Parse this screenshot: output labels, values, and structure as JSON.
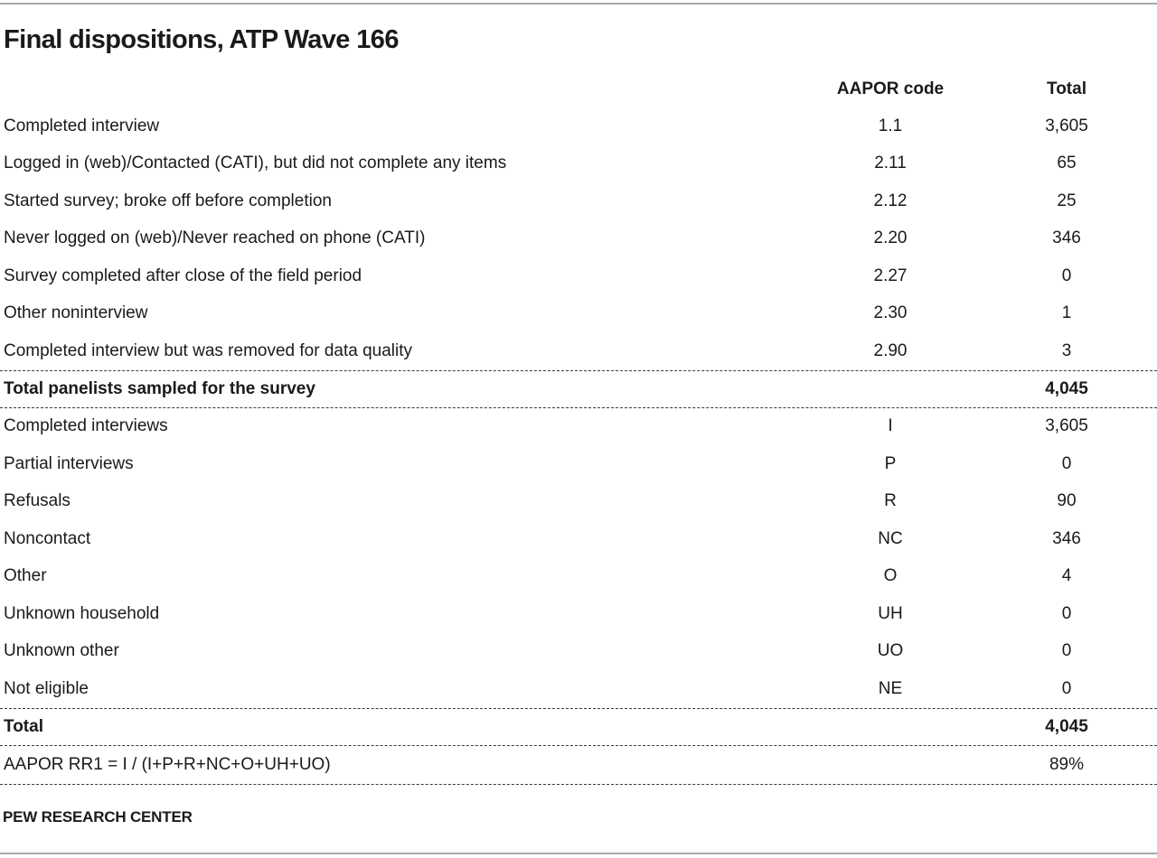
{
  "title": "Final dispositions, ATP Wave 166",
  "source": "PEW RESEARCH CENTER",
  "colors": {
    "text": "#1a1a1a",
    "rule_gray": "#a8a8a8",
    "dashed_separator": "#3a3a3a",
    "background": "#ffffff"
  },
  "table": {
    "header": {
      "code": "AAPOR code",
      "total": "Total"
    },
    "rows": [
      {
        "label": "Completed interview",
        "code": "1.1",
        "total": "3,605",
        "style": "normal"
      },
      {
        "label": "Logged in (web)/Contacted (CATI), but did not complete any items",
        "code": "2.11",
        "total": "65",
        "style": "normal"
      },
      {
        "label": "Started survey; broke off before completion",
        "code": "2.12",
        "total": "25",
        "style": "normal"
      },
      {
        "label": "Never logged on (web)/Never reached on phone (CATI)",
        "code": "2.20",
        "total": "346",
        "style": "normal"
      },
      {
        "label": "Survey completed after close of the field period",
        "code": "2.27",
        "total": "0",
        "style": "normal"
      },
      {
        "label": "Other noninterview",
        "code": "2.30",
        "total": "1",
        "style": "normal"
      },
      {
        "label": "Completed interview but was removed for data quality",
        "code": "2.90",
        "total": "3",
        "style": "normal"
      },
      {
        "label": "Total panelists sampled for the survey",
        "code": "",
        "total": "4,045",
        "style": "total"
      },
      {
        "label": "Completed interviews",
        "code": "I",
        "total": "3,605",
        "style": "normal"
      },
      {
        "label": "Partial interviews",
        "code": "P",
        "total": "0",
        "style": "normal"
      },
      {
        "label": "Refusals",
        "code": "R",
        "total": "90",
        "style": "normal"
      },
      {
        "label": "Noncontact",
        "code": "NC",
        "total": "346",
        "style": "normal"
      },
      {
        "label": "Other",
        "code": "O",
        "total": "4",
        "style": "normal"
      },
      {
        "label": "Unknown household",
        "code": "UH",
        "total": "0",
        "style": "normal"
      },
      {
        "label": "Unknown other",
        "code": "UO",
        "total": "0",
        "style": "normal"
      },
      {
        "label": "Not eligible",
        "code": "NE",
        "total": "0",
        "style": "normal"
      },
      {
        "label": "Total",
        "code": "",
        "total": "4,045",
        "style": "total"
      },
      {
        "label": "AAPOR RR1 = I / (I+P+R+NC+O+UH+UO)",
        "code": "",
        "total": "89%",
        "style": "formula"
      }
    ]
  },
  "chart_data": {
    "type": "table",
    "title": "Final dispositions, ATP Wave 166",
    "columns": [
      "Disposition",
      "AAPOR code",
      "Total"
    ],
    "rows": [
      [
        "Completed interview",
        "1.1",
        "3,605"
      ],
      [
        "Logged in (web)/Contacted (CATI), but did not complete any items",
        "2.11",
        "65"
      ],
      [
        "Started survey; broke off before completion",
        "2.12",
        "25"
      ],
      [
        "Never logged on (web)/Never reached on phone (CATI)",
        "2.20",
        "346"
      ],
      [
        "Survey completed after close of the field period",
        "2.27",
        "0"
      ],
      [
        "Other noninterview",
        "2.30",
        "1"
      ],
      [
        "Completed interview but was removed for data quality",
        "2.90",
        "3"
      ],
      [
        "Total panelists sampled for the survey",
        "",
        "4,045"
      ],
      [
        "Completed interviews",
        "I",
        "3,605"
      ],
      [
        "Partial interviews",
        "P",
        "0"
      ],
      [
        "Refusals",
        "R",
        "90"
      ],
      [
        "Noncontact",
        "NC",
        "346"
      ],
      [
        "Other",
        "O",
        "4"
      ],
      [
        "Unknown household",
        "UH",
        "0"
      ],
      [
        "Unknown other",
        "UO",
        "0"
      ],
      [
        "Not eligible",
        "NE",
        "0"
      ],
      [
        "Total",
        "",
        "4,045"
      ],
      [
        "AAPOR RR1 = I / (I+P+R+NC+O+UH+UO)",
        "",
        "89%"
      ]
    ],
    "source": "PEW RESEARCH CENTER"
  }
}
